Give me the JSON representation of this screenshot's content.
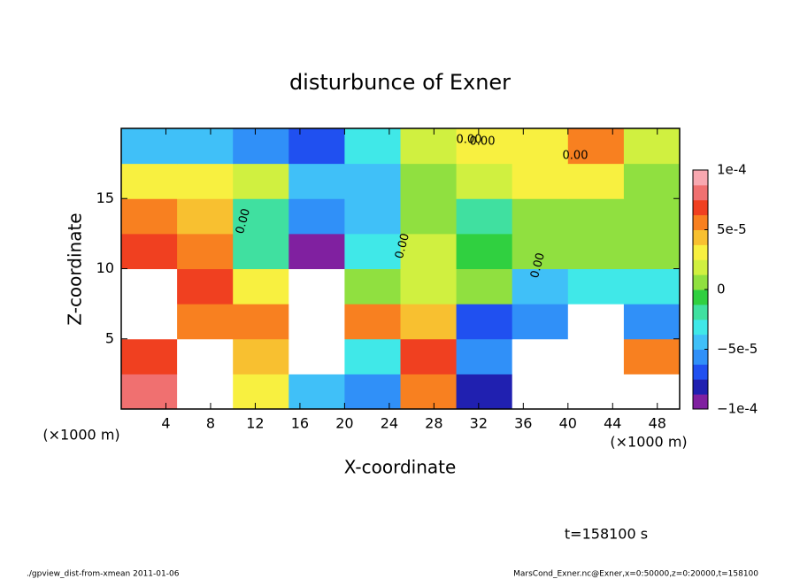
{
  "chart_data": {
    "type": "heatmap",
    "title": "disturbunce of Exner",
    "x_label": "X-coordinate",
    "y_label": "Z-coordinate",
    "x_unit": "(×1000 m)",
    "y_unit": "(×1000 m)",
    "time_label": "t=158100 s",
    "footer_left": "./gpview_dist-from-xmean  2011-01-06",
    "footer_right": "MarsCond_Exner.nc@Exner,x=0:50000,z=0:20000,t=158100",
    "annotations": [
      "0.00",
      "0.00",
      "0.00",
      "0.00",
      "0.00",
      "0.00"
    ],
    "xlim": [
      0,
      50
    ],
    "ylim": [
      0,
      20
    ],
    "xticks": [
      4,
      8,
      12,
      16,
      20,
      24,
      28,
      32,
      36,
      40,
      44,
      48
    ],
    "yticks": [
      5,
      10,
      15
    ],
    "x": [
      2.5,
      7.5,
      12.5,
      17.5,
      22.5,
      27.5,
      32.5,
      37.5,
      42.5,
      47.5
    ],
    "y": [
      1.25,
      3.75,
      6.25,
      8.75,
      11.25,
      13.75,
      16.25,
      18.75
    ],
    "z": [
      [
        8e-05,
        -0.0002,
        3e-05,
        -5e-05,
        -6e-05,
        6e-05,
        -8e-05,
        0.0002,
        -0.0002,
        0.0002
      ],
      [
        7e-05,
        -0.00015,
        4e-05,
        0.0002,
        -3e-05,
        7e-05,
        -6e-05,
        0.0002,
        -0.0002,
        6e-05
      ],
      [
        0.0002,
        6e-05,
        5e-05,
        0.0002,
        5e-05,
        4e-05,
        -7e-05,
        -6e-05,
        0.0002,
        -6e-05
      ],
      [
        0.0002,
        7e-05,
        3e-05,
        0.0002,
        1e-05,
        2e-05,
        1e-05,
        -4e-05,
        -3e-05,
        -3e-05
      ],
      [
        7e-05,
        6e-05,
        -2e-05,
        -9e-05,
        -3e-05,
        2e-05,
        -1e-05,
        1e-05,
        1e-05,
        5e-06
      ],
      [
        5e-05,
        4e-05,
        -2e-05,
        -6e-05,
        -4e-05,
        1e-05,
        -2e-05,
        1e-05,
        1e-05,
        1e-05
      ],
      [
        3e-05,
        3e-05,
        2e-05,
        -4e-05,
        -4e-05,
        1e-05,
        2e-05,
        3e-05,
        3e-05,
        1e-05
      ],
      [
        -5e-05,
        -4e-05,
        -6e-05,
        -7e-05,
        -3e-05,
        2e-05,
        3e-05,
        3e-05,
        5e-05,
        2e-05
      ]
    ],
    "clim": [
      -0.0001,
      0.0001
    ],
    "cticks": [
      {
        "value": -0.0001,
        "label": "−1e-4"
      },
      {
        "value": -5e-05,
        "label": "−5e-5"
      },
      0,
      {
        "value": 5e-05,
        "label": "5e-5"
      },
      {
        "value": 0.0001,
        "label": "1e-4"
      }
    ],
    "colormap": [
      "#8020a0",
      "#2020b0",
      "#2050f0",
      "#3090f8",
      "#40c0f8",
      "#40e8e8",
      "#40e0a0",
      "#30d040",
      "#90e040",
      "#d0f040",
      "#f8f040",
      "#f8c030",
      "#f88020",
      "#f04020",
      "#f07070",
      "#f8a8b0"
    ],
    "out_of_range_color": "#ffffff"
  }
}
